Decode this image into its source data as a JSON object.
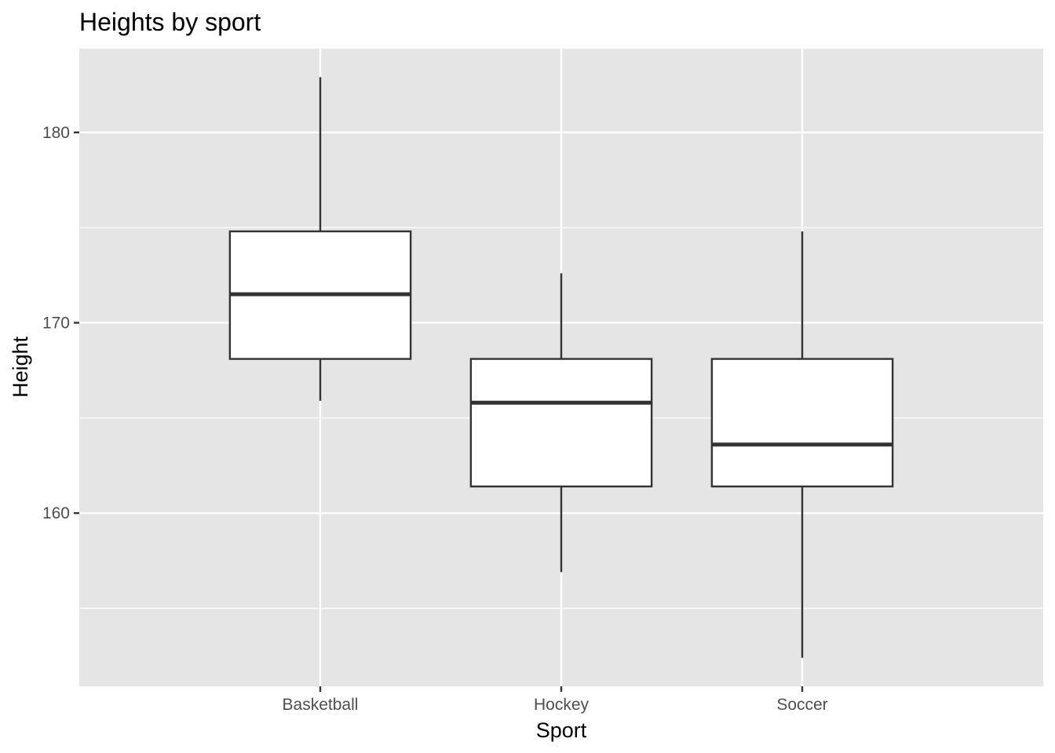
{
  "chart_data": {
    "type": "boxplot",
    "title": "Heights by sport",
    "xlabel": "Sport",
    "ylabel": "Height",
    "categories": [
      "Basketball",
      "Hockey",
      "Soccer"
    ],
    "boxes": [
      {
        "category": "Basketball",
        "min": 165.9,
        "q1": 168.1,
        "median": 171.5,
        "q3": 174.8,
        "max": 182.9
      },
      {
        "category": "Hockey",
        "min": 156.9,
        "q1": 161.4,
        "median": 165.8,
        "q3": 168.1,
        "max": 172.6
      },
      {
        "category": "Soccer",
        "min": 152.4,
        "q1": 161.4,
        "median": 163.6,
        "q3": 168.1,
        "max": 174.8
      }
    ],
    "ylim": [
      150.9,
      184.4
    ],
    "y_ticks": [
      160,
      170,
      180
    ],
    "y_tick_labels": [
      "160",
      "170",
      "180"
    ],
    "y_minor_ticks": [
      155,
      165,
      175
    ],
    "grid": true,
    "legend": "none",
    "colors": {
      "panel_background": "#e5e5e5",
      "grid": "#ffffff",
      "box_fill": "#ffffff",
      "box_stroke": "#333333",
      "tick_mark": "#333333"
    }
  }
}
